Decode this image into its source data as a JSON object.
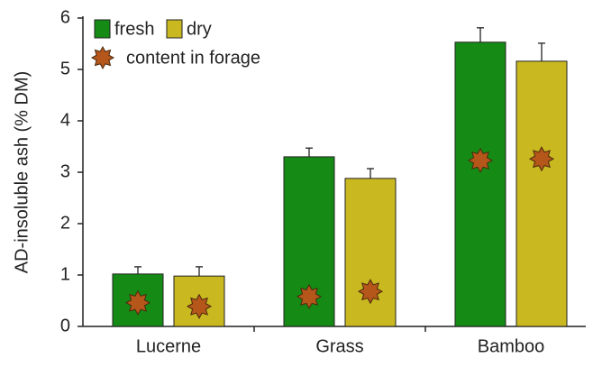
{
  "chart_data": {
    "type": "bar",
    "ylabel": "AD-insoluble ash (% DM)",
    "categories": [
      "Lucerne",
      "Grass",
      "Bamboo"
    ],
    "series": [
      {
        "name": "fresh",
        "color": "#158a15",
        "values": [
          1.02,
          3.3,
          5.53
        ],
        "errors": [
          0.14,
          0.17,
          0.28
        ]
      },
      {
        "name": "dry",
        "color": "#c9b820",
        "values": [
          0.98,
          2.88,
          5.16
        ],
        "errors": [
          0.18,
          0.19,
          0.35
        ]
      }
    ],
    "markers": {
      "type": "scatter",
      "name": "content in forage",
      "color": "#b5561a",
      "marker": "star",
      "values": [
        [
          0.46,
          0.39
        ],
        [
          0.58,
          0.68
        ],
        [
          3.23,
          3.26
        ]
      ]
    },
    "ylim": [
      0,
      6
    ],
    "yticks": [
      0,
      1,
      2,
      3,
      4,
      5,
      6
    ],
    "grid": false,
    "legend": "upper left"
  }
}
